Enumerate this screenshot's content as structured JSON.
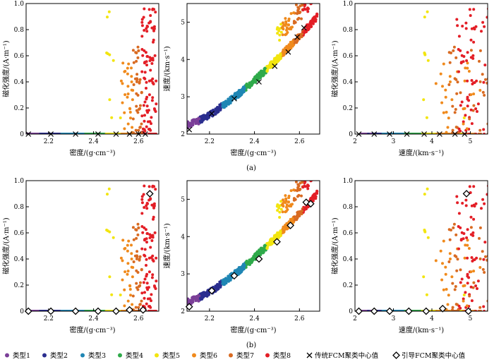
{
  "figure_labels": [
    "(a)",
    "(b)"
  ],
  "colors": {
    "type1": "#7b3f98",
    "type2": "#2b2e8f",
    "type3": "#1f86b4",
    "type4": "#2faa4a",
    "type5": "#f2e50f",
    "type6": "#f08a1c",
    "type7": "#d96b22",
    "type8": "#e31e26",
    "fcm_marker": "#000000",
    "guided_marker": "#000000"
  },
  "legend": {
    "items": [
      {
        "label": "类型1",
        "color": "#7b3f98",
        "symbol": "dot"
      },
      {
        "label": "类型2",
        "color": "#2b2e8f",
        "symbol": "dot"
      },
      {
        "label": "类型3",
        "color": "#1f86b4",
        "symbol": "dot"
      },
      {
        "label": "类型4",
        "color": "#2faa4a",
        "symbol": "dot"
      },
      {
        "label": "类型5",
        "color": "#f2e50f",
        "symbol": "dot"
      },
      {
        "label": "类型6",
        "color": "#f08a1c",
        "symbol": "dot"
      },
      {
        "label": "类型7",
        "color": "#d96b22",
        "symbol": "dot"
      },
      {
        "label": "类型8",
        "color": "#e31e26",
        "symbol": "dot"
      },
      {
        "label": "传统FCM聚类中心值",
        "color": "#000000",
        "symbol": "x"
      },
      {
        "label": "引导FCM聚类中心值",
        "color": "#000000",
        "symbol": "diamond"
      }
    ]
  },
  "chart_data": [
    {
      "type": "scatter",
      "row": "a",
      "kind": "density_mag",
      "xlabel": "密度/(g·cm⁻³)",
      "ylabel": "磁化强度/(A·m⁻¹)",
      "xlim": [
        2.1,
        2.69
      ],
      "ylim": [
        0,
        1.0
      ],
      "xticks": [
        2.2,
        2.4,
        2.6
      ],
      "xtick_labels": [
        "2.2",
        "2.4",
        "2.6"
      ],
      "yticks": [
        0,
        0.2,
        0.4,
        0.6,
        0.8,
        1.0
      ],
      "ytick_labels": [
        "0",
        "0.2",
        "0.4",
        "0.6",
        "0.8",
        "1.0"
      ],
      "center_marker": "x",
      "centers": [
        [
          2.11,
          0.0
        ],
        [
          2.21,
          0.0
        ],
        [
          2.32,
          0.0
        ],
        [
          2.42,
          0.0
        ],
        [
          2.5,
          0.0
        ],
        [
          2.56,
          0.0
        ],
        [
          2.6,
          0.0
        ],
        [
          2.63,
          0.0
        ]
      ]
    },
    {
      "type": "scatter",
      "row": "a",
      "kind": "density_vel",
      "xlabel": "密度/(g·cm⁻³)",
      "ylabel": "速度/(km·s⁻¹)",
      "xlim": [
        2.1,
        2.69
      ],
      "ylim": [
        2,
        5.5
      ],
      "xticks": [
        2.2,
        2.4,
        2.6
      ],
      "xtick_labels": [
        "2.2",
        "2.4",
        "2.6"
      ],
      "yticks": [
        2,
        3,
        4,
        5
      ],
      "ytick_labels": [
        "2",
        "3",
        "4",
        "5"
      ],
      "center_marker": "x",
      "centers": [
        [
          2.11,
          2.12
        ],
        [
          2.21,
          2.55
        ],
        [
          2.31,
          2.95
        ],
        [
          2.42,
          3.4
        ],
        [
          2.49,
          3.82
        ],
        [
          2.55,
          4.2
        ],
        [
          2.59,
          4.6
        ],
        [
          2.62,
          4.85
        ]
      ]
    },
    {
      "type": "scatter",
      "row": "a",
      "kind": "vel_mag",
      "xlabel": "速度/(km·s⁻¹)",
      "ylabel": "磁化强度/(A·m⁻¹)",
      "xlim": [
        2.0,
        5.45
      ],
      "ylim": [
        0,
        1.0
      ],
      "xticks": [
        2,
        3,
        4,
        5
      ],
      "xtick_labels": [
        "2",
        "3",
        "4",
        "5"
      ],
      "yticks": [
        0,
        0.2,
        0.4,
        0.6,
        0.8,
        1.0
      ],
      "ytick_labels": [
        "0",
        "0.2",
        "0.4",
        "0.6",
        "0.8",
        "1.0"
      ],
      "center_marker": "x",
      "centers": [
        [
          2.1,
          0.0
        ],
        [
          2.5,
          0.0
        ],
        [
          2.9,
          0.0
        ],
        [
          3.35,
          0.0
        ],
        [
          3.8,
          0.0
        ],
        [
          4.2,
          0.0
        ],
        [
          4.6,
          0.0
        ],
        [
          4.85,
          0.0
        ]
      ]
    },
    {
      "type": "scatter",
      "row": "b",
      "kind": "density_mag",
      "xlabel": "密度/(g·cm⁻³)",
      "ylabel": "磁化强度/(A·m⁻¹)",
      "xlim": [
        2.1,
        2.69
      ],
      "ylim": [
        0,
        1.0
      ],
      "xticks": [
        2.2,
        2.4,
        2.6
      ],
      "xtick_labels": [
        "2.2",
        "2.4",
        "2.6"
      ],
      "yticks": [
        0,
        0.2,
        0.4,
        0.6,
        0.8,
        1.0
      ],
      "ytick_labels": [
        "0",
        "0.2",
        "0.4",
        "0.6",
        "0.8",
        "1.0"
      ],
      "center_marker": "diamond",
      "centers": [
        [
          2.11,
          0.0
        ],
        [
          2.21,
          0.0
        ],
        [
          2.32,
          0.0
        ],
        [
          2.42,
          0.0
        ],
        [
          2.5,
          0.0
        ],
        [
          2.56,
          0.01
        ],
        [
          2.62,
          0.01
        ],
        [
          2.65,
          0.9
        ]
      ]
    },
    {
      "type": "scatter",
      "row": "b",
      "kind": "density_vel",
      "xlabel": "密度/(g·cm⁻³)",
      "ylabel": "速度/(km·s⁻¹)",
      "xlim": [
        2.1,
        2.69
      ],
      "ylim": [
        2,
        5.5
      ],
      "xticks": [
        2.2,
        2.4,
        2.6
      ],
      "xtick_labels": [
        "2.2",
        "2.4",
        "2.6"
      ],
      "yticks": [
        2,
        3,
        4,
        5
      ],
      "ytick_labels": [
        "2",
        "3",
        "4",
        "5"
      ],
      "center_marker": "diamond",
      "centers": [
        [
          2.11,
          2.12
        ],
        [
          2.21,
          2.55
        ],
        [
          2.31,
          2.95
        ],
        [
          2.42,
          3.4
        ],
        [
          2.5,
          3.86
        ],
        [
          2.56,
          4.3
        ],
        [
          2.63,
          4.92
        ],
        [
          2.65,
          4.88
        ]
      ]
    },
    {
      "type": "scatter",
      "row": "b",
      "kind": "vel_mag",
      "xlabel": "速度/(km·s⁻¹)",
      "ylabel": "磁化强度/(A·m⁻¹)",
      "xlim": [
        2.0,
        5.45
      ],
      "ylim": [
        0,
        1.0
      ],
      "xticks": [
        2,
        3,
        4,
        5
      ],
      "xtick_labels": [
        "2",
        "3",
        "4",
        "5"
      ],
      "yticks": [
        0,
        0.2,
        0.4,
        0.6,
        0.8,
        1.0
      ],
      "ytick_labels": [
        "0",
        "0.2",
        "0.4",
        "0.6",
        "0.8",
        "1.0"
      ],
      "center_marker": "diamond",
      "centers": [
        [
          2.1,
          0.0
        ],
        [
          2.5,
          0.0
        ],
        [
          2.9,
          0.0
        ],
        [
          3.4,
          0.0
        ],
        [
          3.85,
          0.0
        ],
        [
          4.28,
          0.02
        ],
        [
          4.95,
          0.0
        ],
        [
          4.9,
          0.9
        ]
      ]
    }
  ]
}
